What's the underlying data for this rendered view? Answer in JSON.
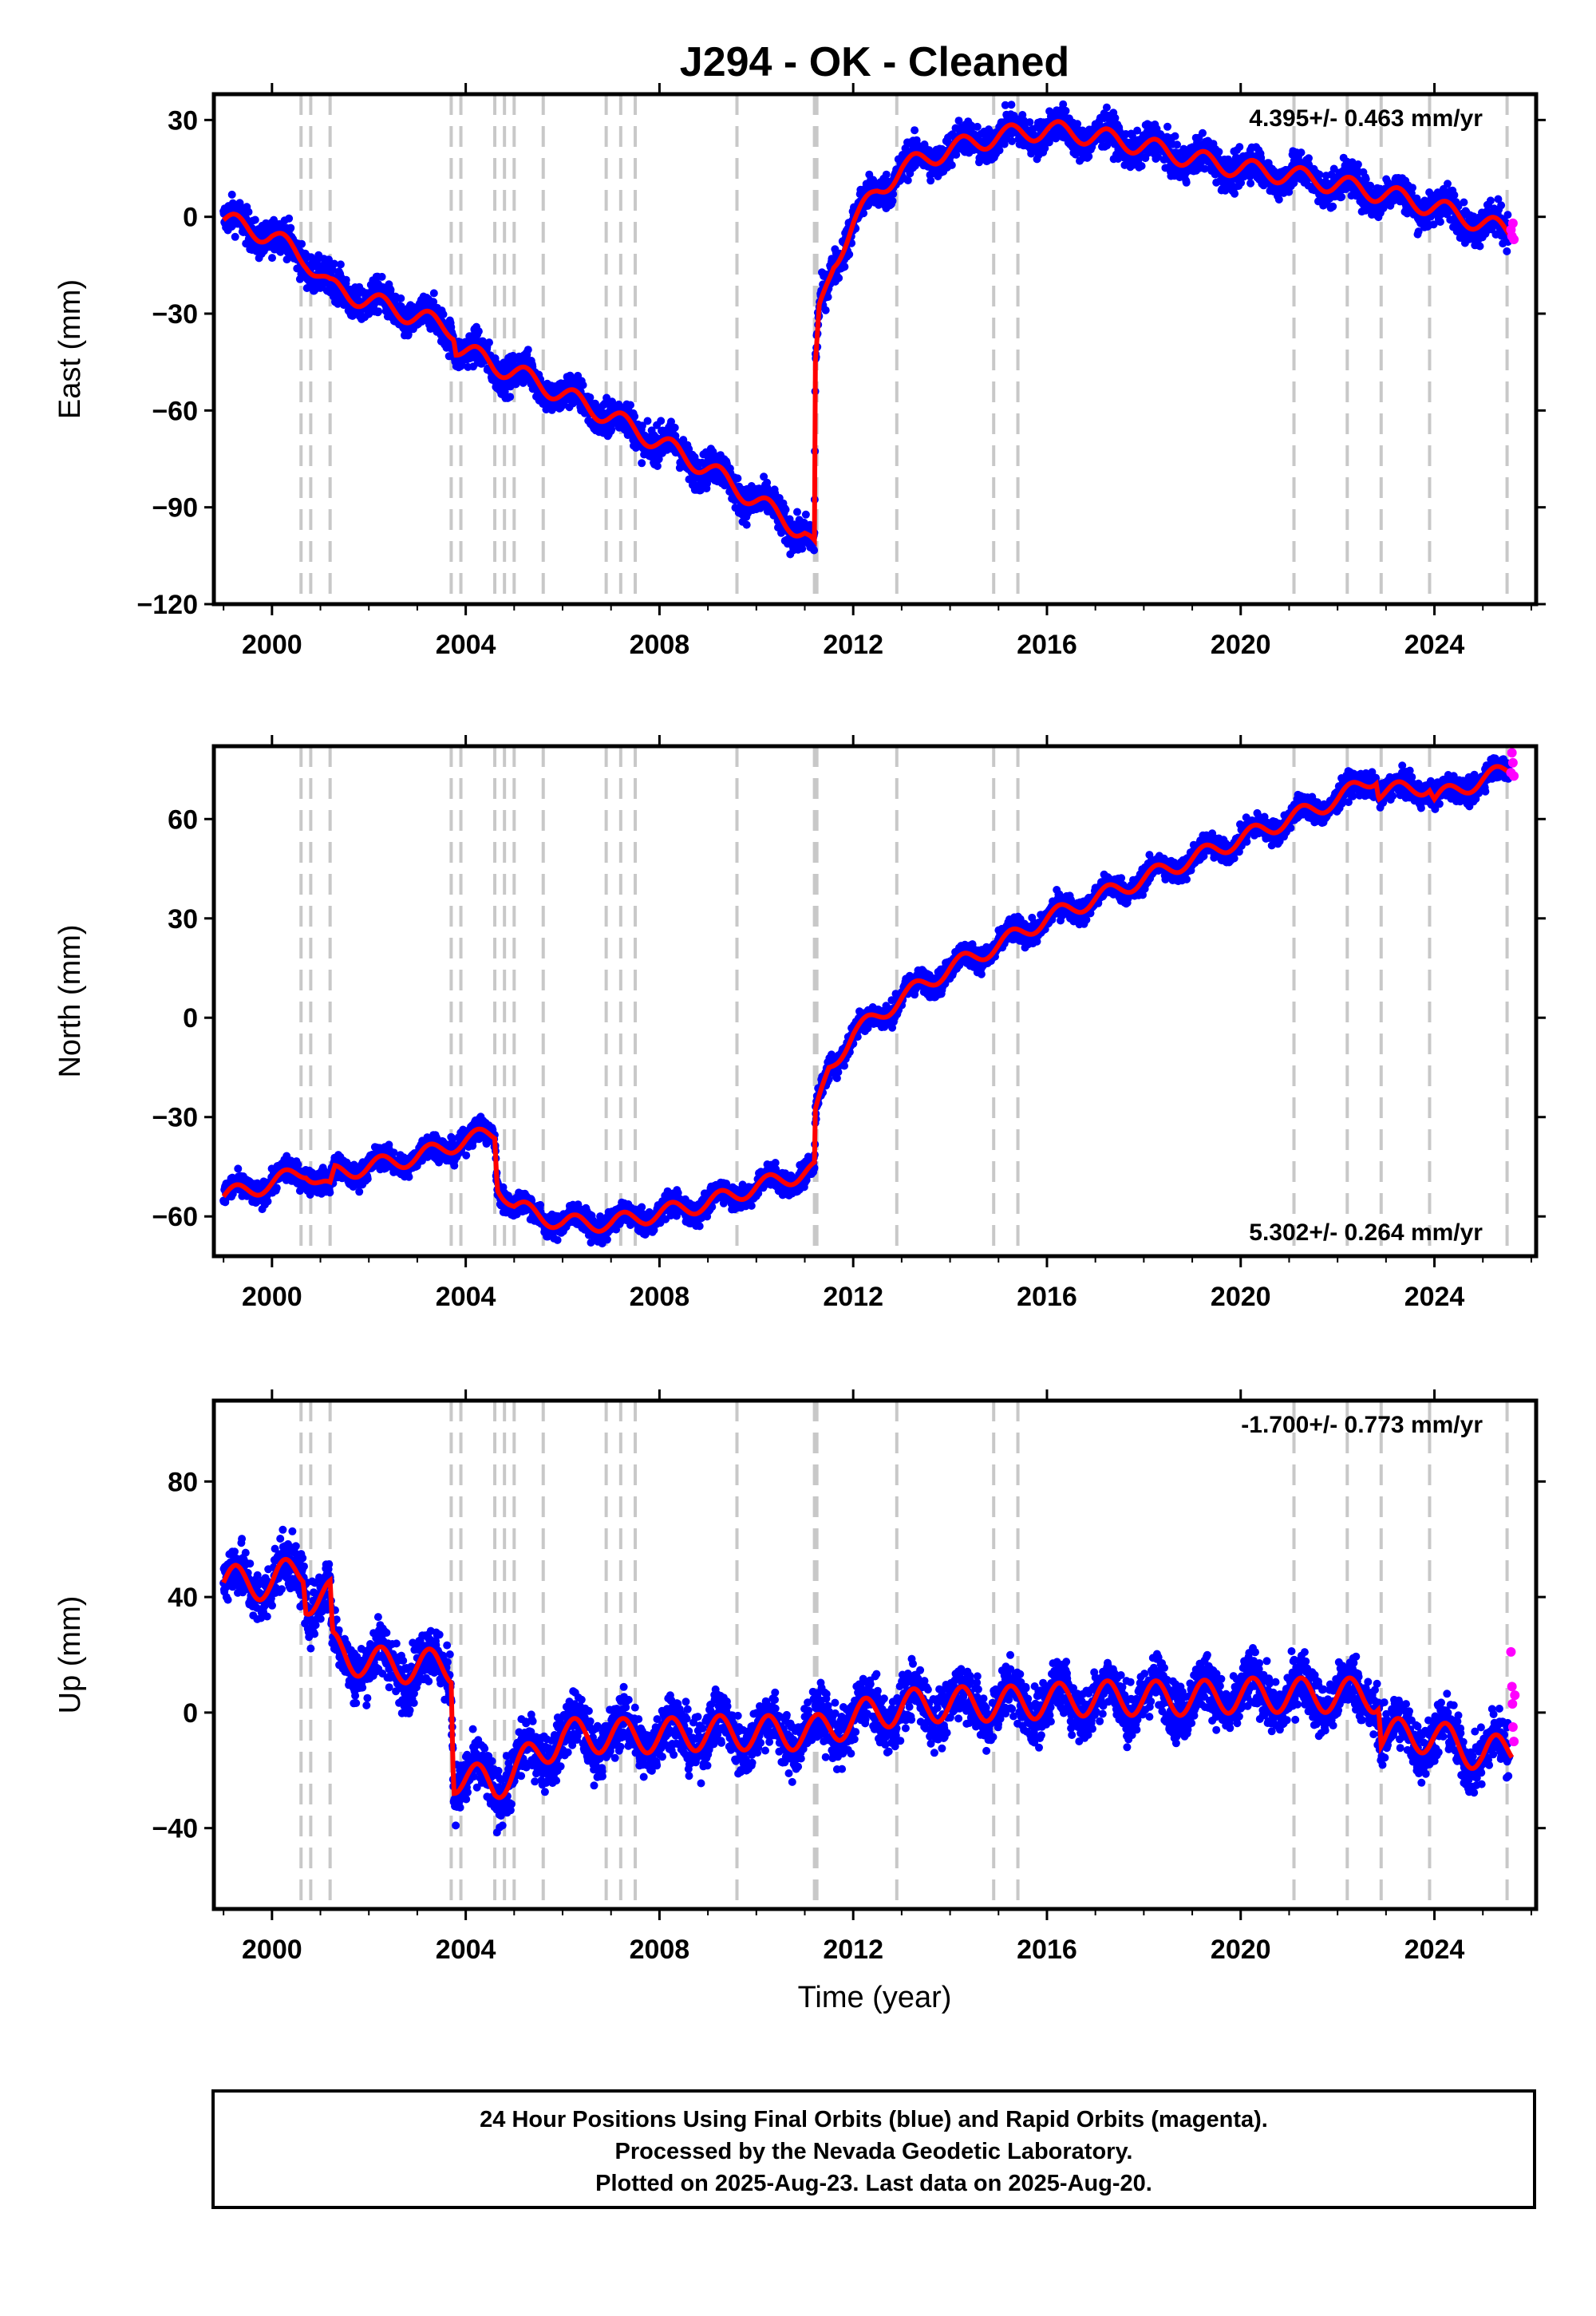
{
  "chart_data": {
    "title": "J294  - OK - Cleaned",
    "type": "scatter",
    "xlabel": "Time (year)",
    "xlim": [
      1998.8,
      2026.1
    ],
    "x_ticks": [
      2000,
      2004,
      2008,
      2012,
      2016,
      2020,
      2024
    ],
    "x_tick_labels": [
      "2000",
      "2004",
      "2008",
      "2012",
      "2016",
      "2020",
      "2024"
    ],
    "grid": false,
    "equipment_change_epochs": [
      2000.6,
      2000.8,
      2001.2,
      2003.7,
      2003.9,
      2004.6,
      2004.8,
      2005.0,
      2005.6,
      2006.9,
      2007.2,
      2007.5,
      2009.6,
      2011.2,
      2011.25,
      2012.9,
      2014.9,
      2015.4,
      2021.1,
      2022.2,
      2022.9,
      2023.9,
      2025.5
    ],
    "series_colors": {
      "final_orbits": "#0000ff",
      "rapid_orbits": "#ff00ff",
      "model": "#ff0000",
      "events": "#c8c8c8"
    },
    "panels": [
      {
        "component": "East",
        "ylabel": "East (mm)",
        "ylim": [
          -120,
          38
        ],
        "y_ticks": [
          30,
          0,
          -30,
          -60,
          -90,
          -120
        ],
        "y_tick_labels": [
          "30",
          "0",
          "−30",
          "−60",
          "−90",
          "−120"
        ],
        "rate_label": "4.395+/- 0.463 mm/yr",
        "rate_position": "top-right",
        "model_trend": [
          [
            1999.0,
            -1
          ],
          [
            2000.0,
            -6
          ],
          [
            2000.7,
            -13
          ],
          [
            2001.2,
            -22
          ],
          [
            2002.0,
            -26
          ],
          [
            2003.0,
            -31
          ],
          [
            2003.75,
            -35
          ],
          [
            2003.8,
            -40
          ],
          [
            2004.6,
            -46
          ],
          [
            2005.0,
            -48
          ],
          [
            2006.0,
            -55
          ],
          [
            2007.0,
            -62
          ],
          [
            2008.0,
            -70
          ],
          [
            2009.0,
            -78
          ],
          [
            2010.0,
            -88
          ],
          [
            2011.0,
            -98
          ],
          [
            2011.2,
            -103
          ],
          [
            2011.22,
            -48
          ],
          [
            2011.3,
            -30
          ],
          [
            2011.6,
            -14
          ],
          [
            2012.0,
            -2
          ],
          [
            2012.5,
            8
          ],
          [
            2013.0,
            15
          ],
          [
            2014.0,
            21
          ],
          [
            2015.0,
            25
          ],
          [
            2016.0,
            27
          ],
          [
            2017.0,
            25
          ],
          [
            2018.0,
            22
          ],
          [
            2019.0,
            18
          ],
          [
            2020.0,
            15
          ],
          [
            2021.0,
            13
          ],
          [
            2022.0,
            10
          ],
          [
            2023.0,
            7
          ],
          [
            2024.0,
            3
          ],
          [
            2025.0,
            -2
          ],
          [
            2025.6,
            -5
          ]
        ],
        "seasonal_amplitude": 3,
        "scatter_spread": 4.5,
        "rapid_points": [
          [
            2025.58,
            -4
          ],
          [
            2025.6,
            -6
          ],
          [
            2025.62,
            -2
          ],
          [
            2025.64,
            -7
          ]
        ]
      },
      {
        "component": "North",
        "ylabel": "North (mm)",
        "ylim": [
          -72,
          82
        ],
        "y_ticks": [
          60,
          30,
          0,
          -30,
          -60
        ],
        "y_tick_labels": [
          "60",
          "30",
          "0",
          "−30",
          "−60"
        ],
        "rate_label": "5.302+/- 0.264 mm/yr",
        "rate_position": "bottom-right",
        "model_trend": [
          [
            1999.0,
            -54
          ],
          [
            2000.0,
            -50
          ],
          [
            2000.7,
            -46
          ],
          [
            2001.2,
            -52
          ],
          [
            2001.3,
            -47
          ],
          [
            2003.0,
            -42
          ],
          [
            2004.0,
            -37
          ],
          [
            2004.6,
            -35
          ],
          [
            2004.65,
            -50
          ],
          [
            2005.0,
            -57
          ],
          [
            2006.0,
            -62
          ],
          [
            2007.0,
            -62
          ],
          [
            2008.0,
            -59
          ],
          [
            2009.0,
            -56
          ],
          [
            2010.0,
            -51
          ],
          [
            2011.2,
            -46
          ],
          [
            2011.22,
            -30
          ],
          [
            2011.5,
            -15
          ],
          [
            2012.0,
            -5
          ],
          [
            2013.0,
            6
          ],
          [
            2014.0,
            15
          ],
          [
            2015.0,
            22
          ],
          [
            2016.0,
            30
          ],
          [
            2017.0,
            36
          ],
          [
            2018.0,
            42
          ],
          [
            2019.0,
            48
          ],
          [
            2020.0,
            54
          ],
          [
            2021.0,
            60
          ],
          [
            2022.0,
            66
          ],
          [
            2022.8,
            73
          ],
          [
            2022.85,
            68
          ],
          [
            2023.9,
            70
          ],
          [
            2024.0,
            66
          ],
          [
            2025.0,
            72
          ],
          [
            2025.6,
            75
          ]
        ],
        "seasonal_amplitude": 2.5,
        "scatter_spread": 3,
        "rapid_points": [
          [
            2025.58,
            74
          ],
          [
            2025.6,
            80
          ],
          [
            2025.62,
            77
          ],
          [
            2025.64,
            73
          ]
        ]
      },
      {
        "component": "Up",
        "ylabel": "Up (mm)",
        "ylim": [
          -68,
          108
        ],
        "y_ticks": [
          80,
          40,
          0,
          -40
        ],
        "y_tick_labels": [
          "80",
          "40",
          "0",
          "−40"
        ],
        "rate_label": "-1.700+/- 0.773 mm/yr",
        "rate_position": "top-right",
        "model_trend": [
          [
            1999.0,
            45
          ],
          [
            2000.0,
            45
          ],
          [
            2000.65,
            50
          ],
          [
            2000.7,
            40
          ],
          [
            2001.2,
            40
          ],
          [
            2001.25,
            22
          ],
          [
            2002.0,
            17
          ],
          [
            2003.0,
            16
          ],
          [
            2003.7,
            16
          ],
          [
            2003.75,
            -22
          ],
          [
            2004.6,
            -25
          ],
          [
            2005.0,
            -20
          ],
          [
            2006.0,
            -8
          ],
          [
            2007.0,
            -8
          ],
          [
            2008.0,
            -8
          ],
          [
            2009.0,
            -7
          ],
          [
            2010.0,
            -7
          ],
          [
            2011.2,
            -7
          ],
          [
            2012.0,
            -2
          ],
          [
            2013.0,
            2
          ],
          [
            2014.0,
            3
          ],
          [
            2015.0,
            3
          ],
          [
            2016.0,
            4
          ],
          [
            2017.0,
            5
          ],
          [
            2018.0,
            5
          ],
          [
            2019.0,
            5
          ],
          [
            2020.0,
            6
          ],
          [
            2021.0,
            6
          ],
          [
            2022.0,
            6
          ],
          [
            2022.85,
            6
          ],
          [
            2022.9,
            -8
          ],
          [
            2024.0,
            -8
          ],
          [
            2025.0,
            -15
          ],
          [
            2025.6,
            -12
          ]
        ],
        "seasonal_amplitude": 6,
        "scatter_spread": 8,
        "rapid_points": [
          [
            2025.58,
            21
          ],
          [
            2025.6,
            9
          ],
          [
            2025.61,
            3
          ],
          [
            2025.62,
            -5
          ],
          [
            2025.64,
            -10
          ],
          [
            2025.66,
            6
          ]
        ]
      }
    ]
  },
  "footer": {
    "line1": "24 Hour Positions Using Final Orbits (blue) and Rapid Orbits (magenta).",
    "line2": "Processed by the Nevada Geodetic Laboratory.",
    "line3": "Plotted on 2025-Aug-23. Last data on 2025-Aug-20."
  }
}
